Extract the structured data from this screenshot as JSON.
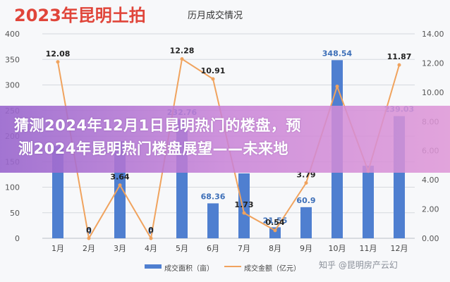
{
  "chart_data": {
    "type": "bar+line",
    "title": "2023年昆明土拍",
    "subtitle": "历月成交情况",
    "categories": [
      "1月",
      "2月",
      "3月",
      "4月",
      "5月",
      "6月",
      "7月",
      "8月",
      "9月",
      "10月",
      "11月",
      "12月"
    ],
    "series": [
      {
        "name": "成交面积（亩）",
        "type": "bar",
        "axis": "left",
        "color": "#4f7fd0",
        "values": [
          180,
          0,
          190,
          0,
          232.76,
          68.36,
          127,
          21.55,
          60.9,
          348.54,
          142,
          239.03
        ]
      },
      {
        "name": "成交金额（亿元）",
        "type": "line",
        "axis": "right",
        "color": "#f0a35e",
        "values": [
          12.08,
          0,
          3.64,
          0,
          12.28,
          10.91,
          1.73,
          0.54,
          3.79,
          10.4,
          4.6,
          11.87
        ]
      }
    ],
    "bar_labels": [
      "",
      "0",
      "",
      "0",
      "232.76",
      "68.36",
      "",
      "21.55",
      "60.9",
      "348.54",
      "",
      "239.03"
    ],
    "line_labels": [
      "12.08",
      "0",
      "3.64",
      "0",
      "12.28",
      "10.91",
      "1.73",
      "0.54",
      "3.79",
      "",
      "",
      "11.87"
    ],
    "y_left": {
      "min": 0,
      "max": 400,
      "ticks": [
        "0",
        "50",
        "100",
        "150",
        "200",
        "250",
        "300",
        "350",
        "400"
      ]
    },
    "y_right": {
      "min": 0,
      "max": 14,
      "ticks": [
        "0.00",
        "2.00",
        "4.00",
        "6.00",
        "8.00",
        "10.00",
        "12.00",
        "14.00"
      ]
    },
    "grid": true,
    "legend": "bottom"
  },
  "banner": {
    "line1": "猜测2024年12月1日昆明热门的楼盘，预",
    "line2": "测2024年昆明热门楼盘展望——未来地"
  },
  "watermark": "知乎 @昆明房产云幻",
  "colors": {
    "title_red": "#e0453a",
    "bar": "#4f7fd0",
    "line": "#f0a35e",
    "banner": "#b07ad8"
  }
}
